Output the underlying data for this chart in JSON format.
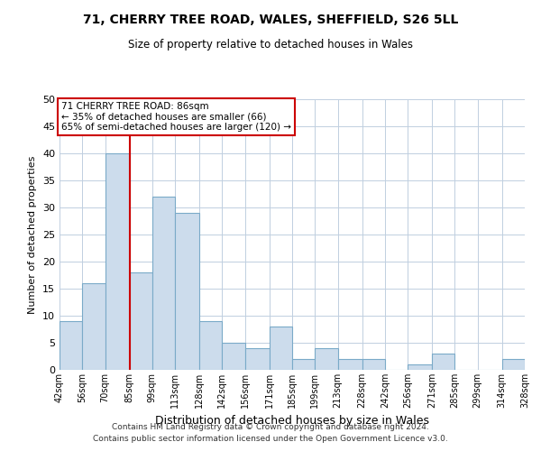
{
  "title": "71, CHERRY TREE ROAD, WALES, SHEFFIELD, S26 5LL",
  "subtitle": "Size of property relative to detached houses in Wales",
  "xlabel": "Distribution of detached houses by size in Wales",
  "ylabel": "Number of detached properties",
  "bin_edges": [
    42,
    56,
    70,
    85,
    99,
    113,
    128,
    142,
    156,
    171,
    185,
    199,
    213,
    228,
    242,
    256,
    271,
    285,
    299,
    314,
    328
  ],
  "bar_heights": [
    9,
    16,
    40,
    18,
    32,
    29,
    9,
    5,
    4,
    8,
    2,
    4,
    2,
    2,
    0,
    1,
    3,
    0,
    0,
    2
  ],
  "bar_color": "#ccdcec",
  "bar_edge_color": "#7aaac8",
  "vline_color": "#cc0000",
  "vline_x": 85,
  "annotation_title": "71 CHERRY TREE ROAD: 86sqm",
  "annotation_line1": "← 35% of detached houses are smaller (66)",
  "annotation_line2": "65% of semi-detached houses are larger (120) →",
  "annotation_box_color": "#ffffff",
  "annotation_box_edge": "#cc0000",
  "ylim": [
    0,
    50
  ],
  "yticks": [
    0,
    5,
    10,
    15,
    20,
    25,
    30,
    35,
    40,
    45,
    50
  ],
  "tick_labels": [
    "42sqm",
    "56sqm",
    "70sqm",
    "85sqm",
    "99sqm",
    "113sqm",
    "128sqm",
    "142sqm",
    "156sqm",
    "171sqm",
    "185sqm",
    "199sqm",
    "213sqm",
    "228sqm",
    "242sqm",
    "256sqm",
    "271sqm",
    "285sqm",
    "299sqm",
    "314sqm",
    "328sqm"
  ],
  "footer1": "Contains HM Land Registry data © Crown copyright and database right 2024.",
  "footer2": "Contains public sector information licensed under the Open Government Licence v3.0.",
  "background_color": "#ffffff",
  "grid_color": "#c0cfe0"
}
